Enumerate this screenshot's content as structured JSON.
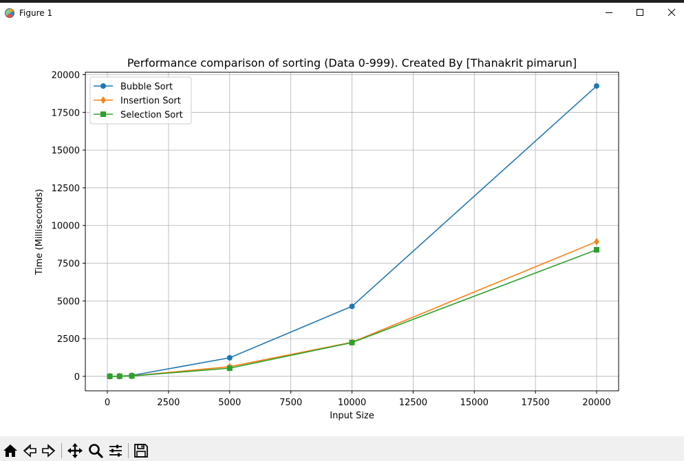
{
  "window": {
    "title": "Figure 1",
    "icons": [
      "matplotlib-logo-icon",
      "minimize-icon",
      "maximize-icon",
      "close-icon"
    ]
  },
  "toolbar": {
    "buttons": [
      "home-icon",
      "back-icon",
      "forward-icon",
      "pan-icon",
      "zoom-icon",
      "configure-subplots-icon",
      "save-icon"
    ]
  },
  "colors": {
    "bubble": "#1f77b4",
    "insertion": "#ff7f0e",
    "selection": "#2ca02c",
    "grid": "#b0b0b0",
    "toolbar_bg": "#f0f0f0"
  },
  "chart_data": {
    "type": "line",
    "title": "Performance comparison of sorting (Data 0-999). Created By [Thanakrit pimarun]",
    "xlabel": "Input Size",
    "ylabel": "Time (Milliseconds)",
    "xlim": [
      -900,
      20900
    ],
    "ylim": [
      -960,
      20160
    ],
    "xticks": [
      0,
      2500,
      5000,
      7500,
      10000,
      12500,
      15000,
      17500,
      20000
    ],
    "yticks": [
      0,
      2500,
      5000,
      7500,
      10000,
      12500,
      15000,
      17500,
      20000
    ],
    "grid": true,
    "legend_position": "upper-left",
    "x": [
      100,
      500,
      1000,
      5000,
      10000,
      20000
    ],
    "series": [
      {
        "name": "Bubble Sort",
        "marker": "circle",
        "color": "#1f77b4",
        "values": [
          5,
          15,
          60,
          1230,
          4640,
          19250
        ]
      },
      {
        "name": "Insertion Sort",
        "marker": "diamond",
        "color": "#ff7f0e",
        "values": [
          2,
          7,
          30,
          640,
          2260,
          8930
        ]
      },
      {
        "name": "Selection Sort",
        "marker": "square",
        "color": "#2ca02c",
        "values": [
          2,
          7,
          25,
          540,
          2240,
          8390
        ]
      }
    ]
  }
}
